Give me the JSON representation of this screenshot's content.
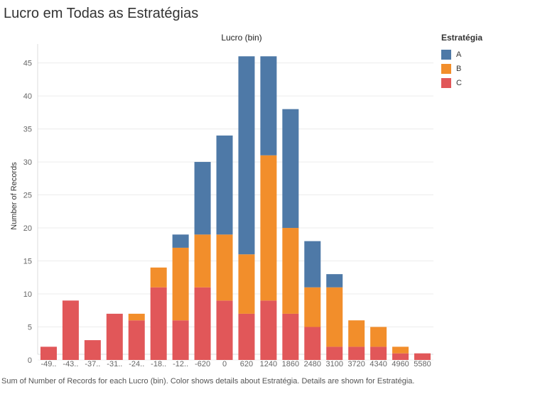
{
  "title": "Lucro em Todas as Estratégias",
  "caption": "Sum of Number of Records for each Lucro (bin).  Color shows details about Estratégia.  Details are shown for Estratégia.",
  "legend": {
    "title": "Estratégia",
    "items": [
      {
        "label": "A",
        "color": "#4e79a7"
      },
      {
        "label": "B",
        "color": "#f28e2b"
      },
      {
        "label": "C",
        "color": "#e15759"
      }
    ]
  },
  "chart_data": {
    "type": "bar",
    "stacked": true,
    "title": "Lucro em Todas as Estratégias",
    "xlabel": "Lucro (bin)",
    "ylabel": "Number of Records",
    "ylim": [
      0,
      47
    ],
    "yticks": [
      0,
      5,
      10,
      15,
      20,
      25,
      30,
      35,
      40,
      45
    ],
    "grid": true,
    "legend_position": "right",
    "categories": [
      "-49..",
      "-43..",
      "-37..",
      "-31..",
      "-24..",
      "-18..",
      "-12..",
      "-620",
      "0",
      "620",
      "1240",
      "1860",
      "2480",
      "3100",
      "3720",
      "4340",
      "4960",
      "5580"
    ],
    "series": [
      {
        "name": "C",
        "color": "#e15759",
        "values": [
          2,
          9,
          3,
          7,
          6,
          11,
          6,
          11,
          9,
          7,
          9,
          7,
          5,
          2,
          2,
          2,
          1,
          1
        ]
      },
      {
        "name": "B",
        "color": "#f28e2b",
        "values": [
          0,
          0,
          0,
          0,
          1,
          3,
          11,
          8,
          10,
          9,
          22,
          13,
          6,
          9,
          4,
          3,
          1,
          0
        ]
      },
      {
        "name": "A",
        "color": "#4e79a7",
        "values": [
          0,
          0,
          0,
          0,
          0,
          0,
          2,
          11,
          15,
          30,
          15,
          18,
          7,
          2,
          0,
          0,
          0,
          0
        ]
      }
    ]
  }
}
